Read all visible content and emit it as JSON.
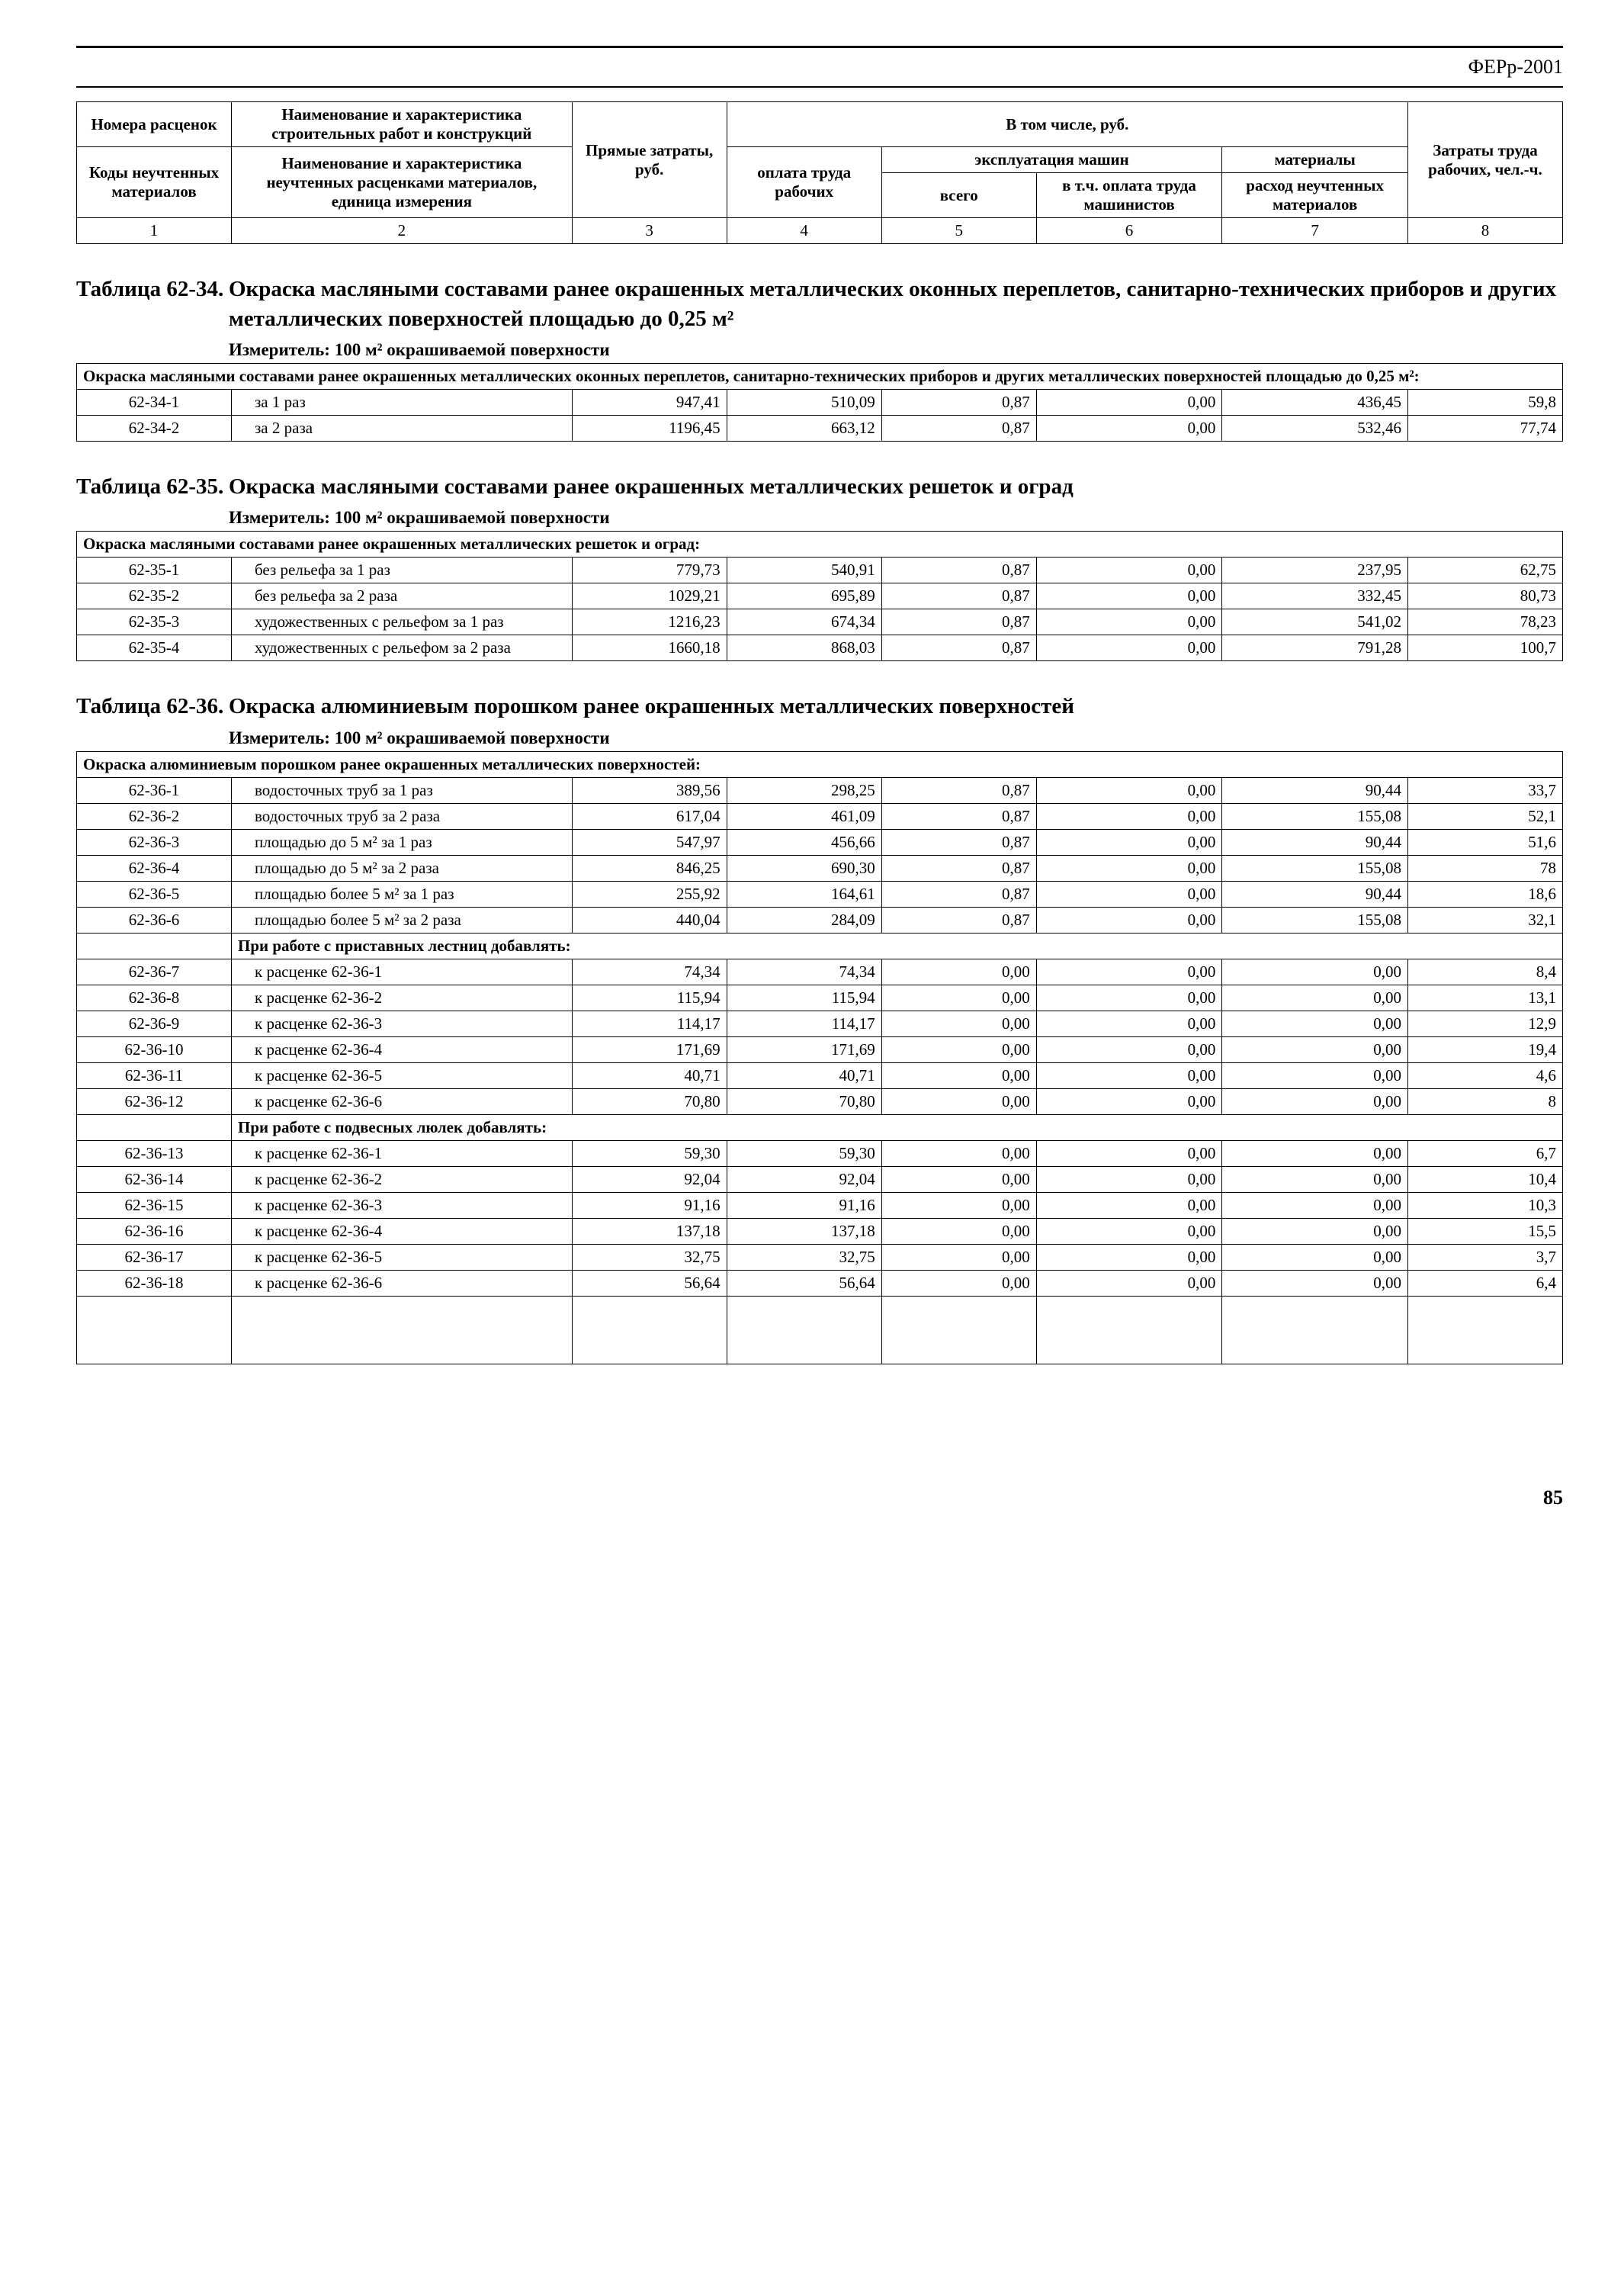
{
  "doc": {
    "header_right": "ФЕРр-2001",
    "page_number": "85"
  },
  "columns": {
    "h_top_number": "Номера расценок",
    "h_top_name": "Наименование и характеристика строительных работ и конструкций",
    "h_including": "В том числе, руб.",
    "h_machines": "эксплуатация машин",
    "h_materials_top": "материалы",
    "h_costs": "Затраты труда рабочих, чел.-ч.",
    "h_codes": "Коды неучтенных материалов",
    "h_name2": "Наименование и характеристика неучтенных расценками материалов, единица измерения",
    "h_direct": "Прямые затраты, руб.",
    "h_labor": "оплата труда рабочих",
    "h_total": "всего",
    "h_incl_mach": "в т.ч. оплата труда машинистов",
    "h_mat_cons": "расход неучтенных материалов",
    "num1": "1",
    "num2": "2",
    "num3": "3",
    "num4": "4",
    "num5": "5",
    "num6": "6",
    "num7": "7",
    "num8": "8"
  },
  "t34": {
    "prefix": "Таблица 62-34.",
    "title": "Окраска масляными составами ранее окрашенных металлических оконных переплетов, санитарно-технических приборов и других металлических поверхностей площадью до 0,25 м²",
    "measure": "Измеритель: 100 м² окрашиваемой поверхности",
    "sub": "Окраска масляными составами ранее окрашенных металлических оконных переплетов, санитарно-технических приборов и других металлических поверхностей площадью до 0,25 м²:",
    "rows": [
      {
        "c": "62-34-1",
        "d": "за 1 раз",
        "v": [
          "947,41",
          "510,09",
          "0,87",
          "0,00",
          "436,45",
          "59,8"
        ]
      },
      {
        "c": "62-34-2",
        "d": "за 2 раза",
        "v": [
          "1196,45",
          "663,12",
          "0,87",
          "0,00",
          "532,46",
          "77,74"
        ]
      }
    ]
  },
  "t35": {
    "prefix": "Таблица 62-35.",
    "title": "Окраска масляными составами ранее окрашенных металлических решеток и оград",
    "measure": "Измеритель: 100 м² окрашиваемой поверхности",
    "sub": "Окраска масляными составами ранее окрашенных металлических решеток и оград:",
    "rows": [
      {
        "c": "62-35-1",
        "d": "без рельефа за 1 раз",
        "v": [
          "779,73",
          "540,91",
          "0,87",
          "0,00",
          "237,95",
          "62,75"
        ]
      },
      {
        "c": "62-35-2",
        "d": "без рельефа за 2 раза",
        "v": [
          "1029,21",
          "695,89",
          "0,87",
          "0,00",
          "332,45",
          "80,73"
        ]
      },
      {
        "c": "62-35-3",
        "d": "художественных с рельефом за 1 раз",
        "v": [
          "1216,23",
          "674,34",
          "0,87",
          "0,00",
          "541,02",
          "78,23"
        ]
      },
      {
        "c": "62-35-4",
        "d": "художественных с рельефом за 2 раза",
        "v": [
          "1660,18",
          "868,03",
          "0,87",
          "0,00",
          "791,28",
          "100,7"
        ]
      }
    ]
  },
  "t36": {
    "prefix": "Таблица 62-36.",
    "title": "Окраска алюминиевым порошком ранее окрашенных металлических поверхностей",
    "measure": "Измеритель: 100 м² окрашиваемой поверхности",
    "sub1": "Окраска алюминиевым порошком ранее окрашенных металлических поверхностей:",
    "sub2": "При работе с приставных лестниц добавлять:",
    "sub3": "При работе с подвесных люлек добавлять:",
    "rows1": [
      {
        "c": "62-36-1",
        "d": "водосточных труб за 1 раз",
        "v": [
          "389,56",
          "298,25",
          "0,87",
          "0,00",
          "90,44",
          "33,7"
        ]
      },
      {
        "c": "62-36-2",
        "d": "водосточных труб за 2 раза",
        "v": [
          "617,04",
          "461,09",
          "0,87",
          "0,00",
          "155,08",
          "52,1"
        ]
      },
      {
        "c": "62-36-3",
        "d": "площадью до 5 м² за 1 раз",
        "v": [
          "547,97",
          "456,66",
          "0,87",
          "0,00",
          "90,44",
          "51,6"
        ]
      },
      {
        "c": "62-36-4",
        "d": "площадью до 5 м² за 2 раза",
        "v": [
          "846,25",
          "690,30",
          "0,87",
          "0,00",
          "155,08",
          "78"
        ]
      },
      {
        "c": "62-36-5",
        "d": "площадью более 5 м² за 1 раз",
        "v": [
          "255,92",
          "164,61",
          "0,87",
          "0,00",
          "90,44",
          "18,6"
        ]
      },
      {
        "c": "62-36-6",
        "d": "площадью более 5 м² за 2 раза",
        "v": [
          "440,04",
          "284,09",
          "0,87",
          "0,00",
          "155,08",
          "32,1"
        ]
      }
    ],
    "rows2": [
      {
        "c": "62-36-7",
        "d": "к расценке 62-36-1",
        "v": [
          "74,34",
          "74,34",
          "0,00",
          "0,00",
          "0,00",
          "8,4"
        ]
      },
      {
        "c": "62-36-8",
        "d": "к расценке 62-36-2",
        "v": [
          "115,94",
          "115,94",
          "0,00",
          "0,00",
          "0,00",
          "13,1"
        ]
      },
      {
        "c": "62-36-9",
        "d": "к расценке 62-36-3",
        "v": [
          "114,17",
          "114,17",
          "0,00",
          "0,00",
          "0,00",
          "12,9"
        ]
      },
      {
        "c": "62-36-10",
        "d": "к расценке 62-36-4",
        "v": [
          "171,69",
          "171,69",
          "0,00",
          "0,00",
          "0,00",
          "19,4"
        ]
      },
      {
        "c": "62-36-11",
        "d": "к расценке 62-36-5",
        "v": [
          "40,71",
          "40,71",
          "0,00",
          "0,00",
          "0,00",
          "4,6"
        ]
      },
      {
        "c": "62-36-12",
        "d": "к расценке 62-36-6",
        "v": [
          "70,80",
          "70,80",
          "0,00",
          "0,00",
          "0,00",
          "8"
        ]
      }
    ],
    "rows3": [
      {
        "c": "62-36-13",
        "d": "к расценке 62-36-1",
        "v": [
          "59,30",
          "59,30",
          "0,00",
          "0,00",
          "0,00",
          "6,7"
        ]
      },
      {
        "c": "62-36-14",
        "d": "к расценке 62-36-2",
        "v": [
          "92,04",
          "92,04",
          "0,00",
          "0,00",
          "0,00",
          "10,4"
        ]
      },
      {
        "c": "62-36-15",
        "d": "к расценке 62-36-3",
        "v": [
          "91,16",
          "91,16",
          "0,00",
          "0,00",
          "0,00",
          "10,3"
        ]
      },
      {
        "c": "62-36-16",
        "d": "к расценке 62-36-4",
        "v": [
          "137,18",
          "137,18",
          "0,00",
          "0,00",
          "0,00",
          "15,5"
        ]
      },
      {
        "c": "62-36-17",
        "d": "к расценке 62-36-5",
        "v": [
          "32,75",
          "32,75",
          "0,00",
          "0,00",
          "0,00",
          "3,7"
        ]
      },
      {
        "c": "62-36-18",
        "d": "к расценке 62-36-6",
        "v": [
          "56,64",
          "56,64",
          "0,00",
          "0,00",
          "0,00",
          "6,4"
        ]
      }
    ]
  }
}
